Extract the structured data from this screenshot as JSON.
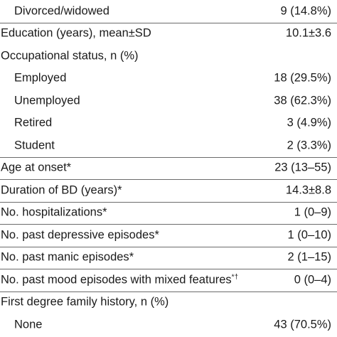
{
  "rows": [
    {
      "label": "Divorced/widowed",
      "value": "9 (14.8%)",
      "indent": true
    },
    {
      "label": "Education (years), mean±SD",
      "value": "10.1±3.6",
      "indent": false
    },
    {
      "label": "Occupational status, n (%)",
      "value": "",
      "indent": false
    },
    {
      "label": "Employed",
      "value": "18 (29.5%)",
      "indent": true
    },
    {
      "label": "Unemployed",
      "value": "38 (62.3%)",
      "indent": true
    },
    {
      "label": "Retired",
      "value": "3 (4.9%)",
      "indent": true
    },
    {
      "label": "Student",
      "value": "2 (3.3%)",
      "indent": true
    },
    {
      "label": "Age at onset",
      "marker": "*",
      "value": "23 (13–55)",
      "indent": false
    },
    {
      "label": "Duration of BD (years)",
      "marker": "*",
      "value": "14.3±8.8",
      "indent": false
    },
    {
      "label": "No. hospitalizations",
      "marker": "*",
      "value": "1 (0–9)",
      "indent": false
    },
    {
      "label": "No. past depressive episodes",
      "marker": "*",
      "value": "1 (0–10)",
      "indent": false
    },
    {
      "label": "No. past manic episodes",
      "marker": "*",
      "value": "2 (1–15)",
      "indent": false
    },
    {
      "label": "No. past mood episodes with mixed features",
      "marker": "*†",
      "value": "0 (0–4)",
      "indent": false
    },
    {
      "label": "First degree family history, n (%)",
      "value": "",
      "indent": false
    },
    {
      "label": "None",
      "value": "43 (70.5%)",
      "indent": true
    }
  ]
}
